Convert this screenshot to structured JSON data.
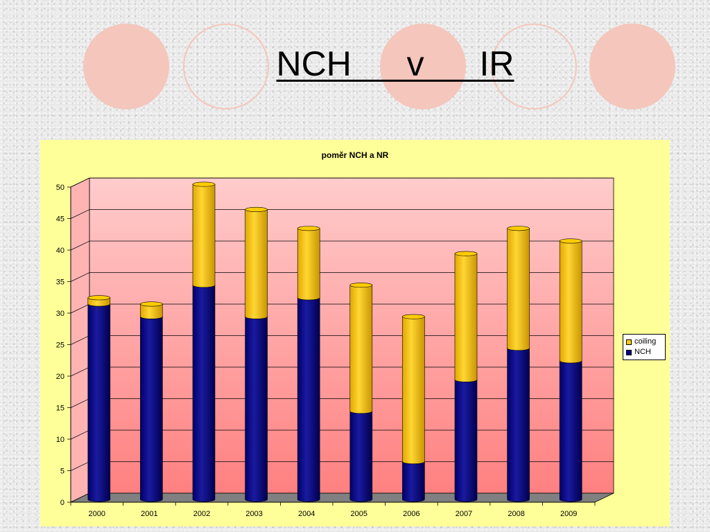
{
  "slide": {
    "title": "NCH  v  IR"
  },
  "decor": {
    "circle_color": "#f4c6bc"
  },
  "chart_data": {
    "type": "bar",
    "stacked": true,
    "three_d": true,
    "title": "poměr NCH a NR",
    "categories": [
      "2000",
      "2001",
      "2002",
      "2003",
      "2004",
      "2005",
      "2006",
      "2007",
      "2008",
      "2009"
    ],
    "series": [
      {
        "name": "NCH",
        "color": "#000080",
        "values": [
          31,
          29,
          34,
          29,
          32,
          14,
          6,
          19,
          24,
          22
        ]
      },
      {
        "name": "coiling",
        "color": "#ffcc00",
        "values": [
          1,
          2,
          16,
          17,
          11,
          20,
          23,
          20,
          19,
          19
        ]
      }
    ],
    "ylim": [
      0,
      50
    ],
    "yticks": [
      0,
      5,
      10,
      15,
      20,
      25,
      30,
      35,
      40,
      45,
      50
    ],
    "grid": true,
    "legend": {
      "position": "right",
      "order": [
        "coiling",
        "NCH"
      ]
    },
    "colors": {
      "panel": "#ffff99",
      "wall_top": "#ffcccc",
      "wall_bottom": "#ff8080",
      "floor": "#808080"
    }
  }
}
